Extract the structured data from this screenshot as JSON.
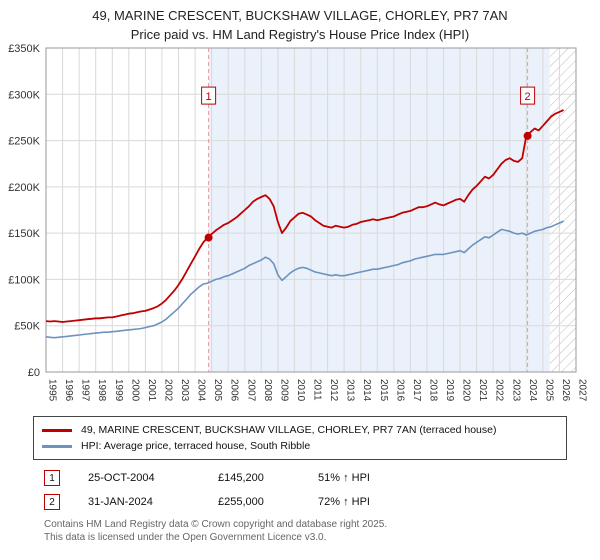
{
  "title": "49, MARINE CRESCENT, BUCKSHAW VILLAGE, CHORLEY, PR7 7AN",
  "subtitle": "Price paid vs. HM Land Registry's House Price Index (HPI)",
  "chart_data": {
    "type": "line",
    "x_unit": "year",
    "y_unit": "GBP thousands",
    "xlim": [
      1995,
      2027
    ],
    "ylim": [
      0,
      350
    ],
    "xticks": [
      1995,
      1996,
      1997,
      1998,
      1999,
      2000,
      2001,
      2002,
      2003,
      2004,
      2005,
      2006,
      2007,
      2008,
      2009,
      2010,
      2011,
      2012,
      2013,
      2014,
      2015,
      2016,
      2017,
      2018,
      2019,
      2020,
      2021,
      2022,
      2023,
      2024,
      2025,
      2026,
      2027
    ],
    "yticks": [
      {
        "v": 0,
        "label": "£0"
      },
      {
        "v": 50,
        "label": "£50K"
      },
      {
        "v": 100,
        "label": "£100K"
      },
      {
        "v": 150,
        "label": "£150K"
      },
      {
        "v": 200,
        "label": "£200K"
      },
      {
        "v": 250,
        "label": "£250K"
      },
      {
        "v": 300,
        "label": "£300K"
      },
      {
        "v": 350,
        "label": "£350K"
      }
    ],
    "shaded_region": {
      "from": 2004.82,
      "to": 2025.42
    },
    "hatched_region": {
      "from": 2025.42,
      "to": 2027
    },
    "marker_label_value": 297,
    "series": [
      {
        "name": "49, MARINE CRESCENT, BUCKSHAW VILLAGE, CHORLEY, PR7 7AN (terraced house)",
        "color": "#c00000",
        "width": 1.8,
        "x_start": 1995,
        "x_step": 0.25,
        "values": [
          55,
          54.5,
          55,
          54.5,
          54,
          54.5,
          55,
          55.5,
          56,
          56.5,
          57,
          57.5,
          58,
          58,
          58.5,
          59,
          59,
          60,
          61,
          62,
          63,
          63.5,
          64.5,
          65.5,
          66,
          67.5,
          69,
          71,
          74,
          78,
          83,
          88,
          94,
          101,
          109,
          117,
          125,
          133,
          140,
          145.2,
          149,
          153,
          156,
          159,
          161,
          164,
          167,
          171,
          175,
          179,
          184,
          187,
          189,
          191,
          187,
          179,
          162,
          150,
          156,
          163,
          167,
          171,
          172,
          170,
          168,
          164,
          161,
          158,
          157,
          156,
          158,
          157,
          156,
          157,
          159,
          160,
          162,
          163,
          164,
          165,
          164,
          165,
          166,
          167,
          168,
          170,
          172,
          173,
          174,
          176,
          178,
          178,
          179,
          181,
          183,
          181,
          180,
          182,
          184,
          186,
          187,
          184,
          191,
          197,
          201,
          206,
          211,
          209,
          213,
          219,
          225,
          229,
          231,
          228,
          227,
          231,
          255,
          259,
          263,
          261,
          266,
          271,
          276,
          279,
          281,
          283
        ]
      },
      {
        "name": "HPI: Average price, terraced house, South Ribble",
        "color": "#6c92bf",
        "width": 1.6,
        "x_start": 1995,
        "x_step": 0.25,
        "values": [
          38,
          37.5,
          37,
          37.5,
          38,
          38.5,
          39,
          39.5,
          40,
          40.5,
          41,
          41.5,
          42,
          42.5,
          43,
          43,
          43.5,
          44,
          44.5,
          45,
          45.5,
          46,
          46.5,
          47,
          48,
          49,
          50,
          52,
          54,
          57,
          61,
          65,
          69,
          74,
          79,
          84,
          88,
          92,
          95,
          96,
          98,
          100,
          101,
          103,
          104,
          106,
          108,
          110,
          112,
          115,
          117,
          119,
          121,
          124,
          122,
          117,
          105,
          99,
          103,
          107,
          110,
          112,
          113,
          112,
          110,
          108,
          107,
          106,
          105,
          104,
          105,
          104,
          104,
          105,
          106,
          107,
          108,
          109,
          110,
          111,
          111,
          112,
          113,
          114,
          115,
          116,
          118,
          119,
          120,
          122,
          123,
          124,
          125,
          126,
          127,
          127,
          127,
          128,
          129,
          130,
          131,
          129,
          133,
          137,
          140,
          143,
          146,
          145,
          148,
          151,
          154,
          153,
          152,
          150,
          149,
          150,
          148,
          150,
          152,
          153,
          154,
          156,
          157,
          159,
          161,
          163
        ]
      }
    ],
    "sales": [
      {
        "label": "1",
        "x": 2004.82,
        "value": 145.2
      },
      {
        "label": "2",
        "x": 2024.08,
        "value": 255
      }
    ],
    "colors": {
      "shade": "#eaf1fa",
      "dashed": "#e49b9b",
      "grid": "#d9d9d9",
      "plot_border": "#999999",
      "hatch": "#bcbcbc"
    }
  },
  "legend": {
    "items": [
      {
        "label": "49, MARINE CRESCENT, BUCKSHAW VILLAGE, CHORLEY, PR7 7AN (terraced house)"
      },
      {
        "label": "HPI: Average price, terraced house, South Ribble"
      }
    ]
  },
  "transactions": [
    {
      "num": "1",
      "date": "25-OCT-2004",
      "price": "£145,200",
      "hpi_change": "51% ↑ HPI"
    },
    {
      "num": "2",
      "date": "31-JAN-2024",
      "price": "£255,000",
      "hpi_change": "72% ↑ HPI"
    }
  ],
  "footer": {
    "line1": "Contains HM Land Registry data © Crown copyright and database right 2025.",
    "line2": "This data is licensed under the Open Government Licence v3.0."
  }
}
